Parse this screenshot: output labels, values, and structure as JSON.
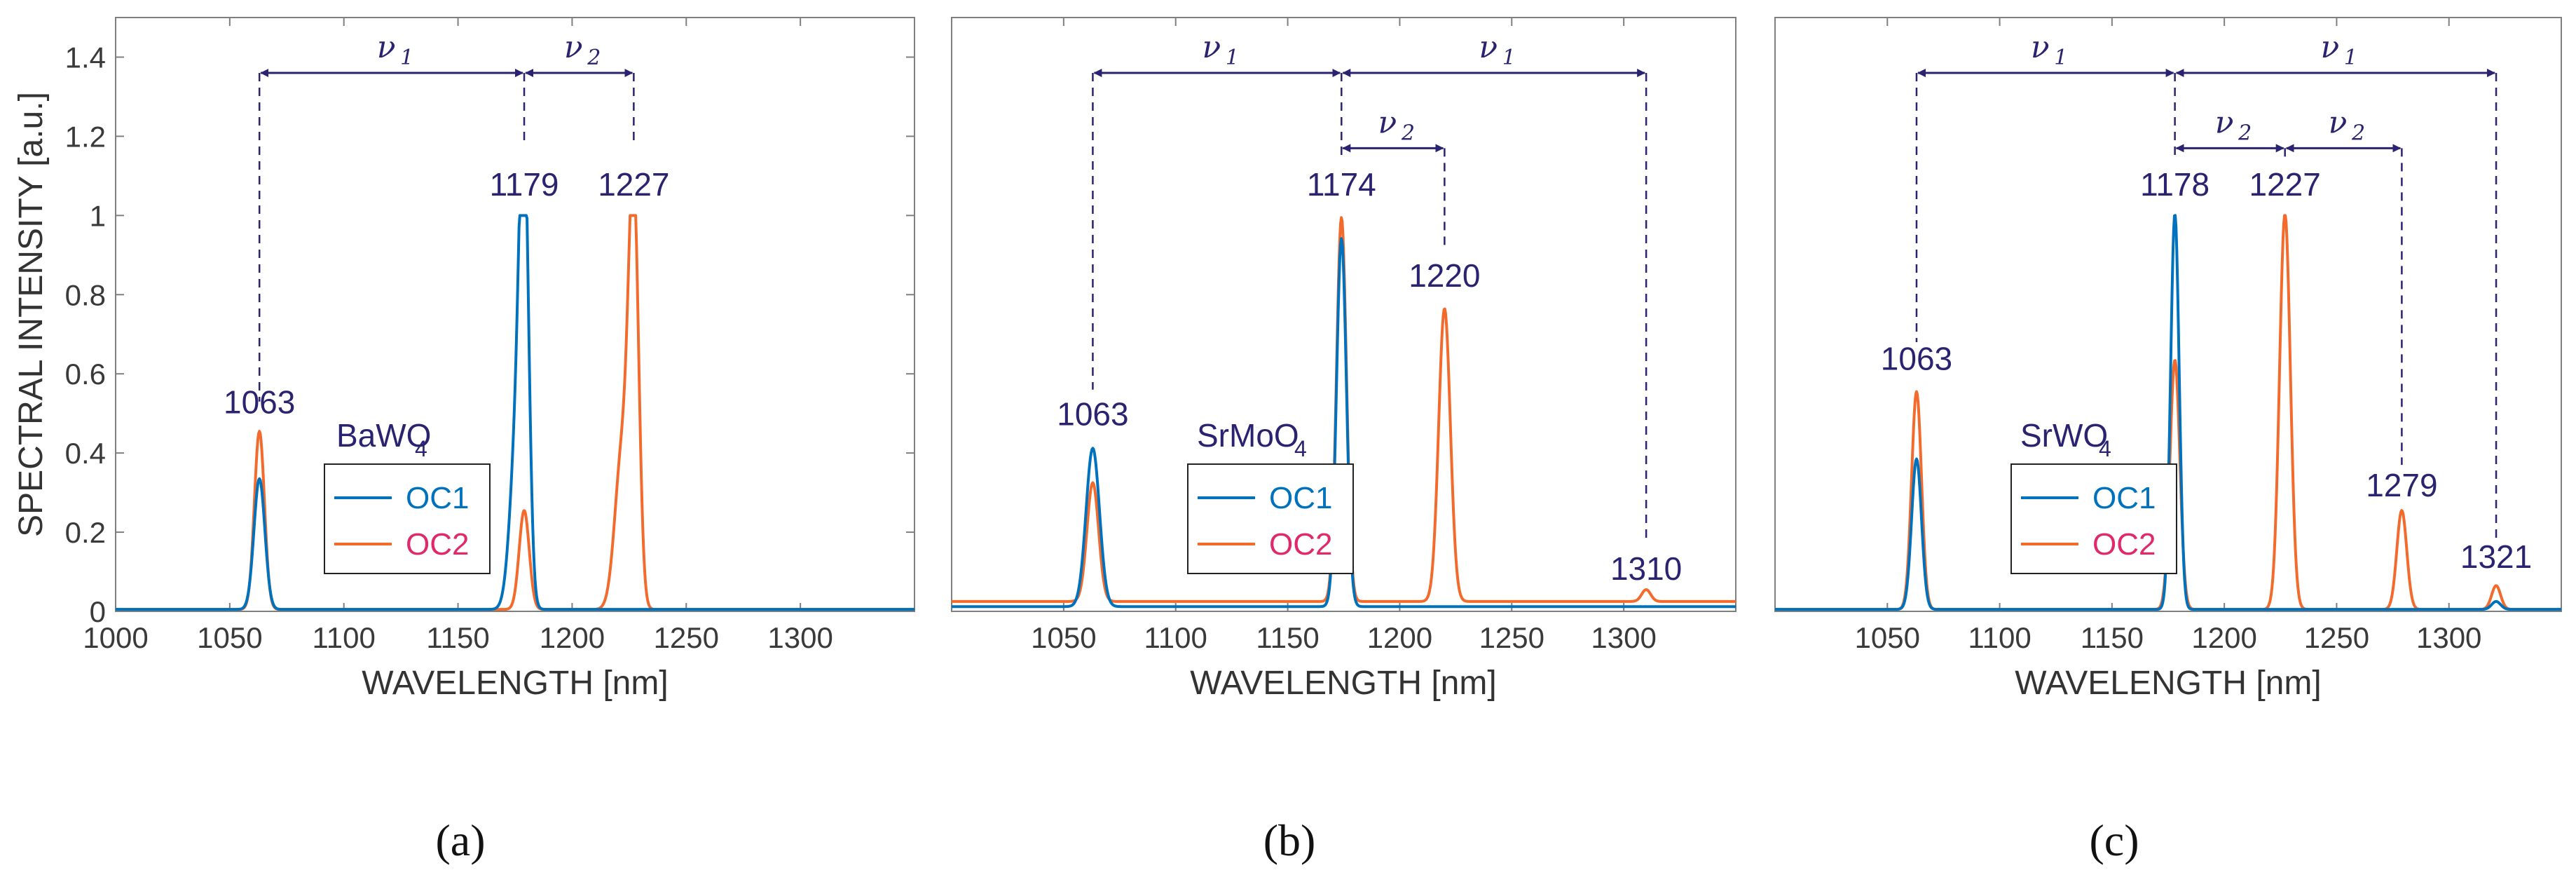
{
  "figure": {
    "y_label": "SPECTRAL INTENSITY [a.u.]",
    "x_label": "WAVELENGTH [nm]",
    "series_names": [
      "OC1",
      "OC2"
    ],
    "colors": {
      "OC1": "#0072bd",
      "OC2": "#f26b2d",
      "annotation": "#2a2470",
      "axis": "#333333",
      "frame": "#7f7f7f",
      "legend_oc2_text": "#e0286a"
    }
  },
  "chart_data": [
    {
      "type": "line",
      "panel": "(a)",
      "sample": {
        "base": "BaWO",
        "sub": "4"
      },
      "title": "",
      "xlabel": "WAVELENGTH [nm]",
      "ylabel": "SPECTRAL INTENSITY [a.u.]",
      "xlim": [
        1000,
        1350
      ],
      "ylim": [
        0,
        1.5
      ],
      "xticks": [
        1000,
        1050,
        1100,
        1150,
        1200,
        1250,
        1300
      ],
      "yticks": [
        0,
        0.2,
        0.4,
        0.6,
        0.8,
        1,
        1.2,
        1.4
      ],
      "yticklabels": [
        "0",
        "0.2",
        "0.4",
        "0.6",
        "0.8",
        "1",
        "1.2",
        "1.4"
      ],
      "series": [
        {
          "name": "OC1",
          "baseline": 0.005,
          "peaks": [
            {
              "center": 1063,
              "height": 0.33,
              "width": 2.4
            },
            {
              "center": 1179,
              "height": 1.0,
              "width": 2.0
            },
            {
              "center": 1176,
              "height": 0.45,
              "width": 3.0
            }
          ]
        },
        {
          "name": "OC2",
          "baseline": 0.005,
          "peaks": [
            {
              "center": 1063,
              "height": 0.45,
              "width": 2.2
            },
            {
              "center": 1179,
              "height": 0.25,
              "width": 2.2
            },
            {
              "center": 1227,
              "height": 1.0,
              "width": 2.2
            },
            {
              "center": 1222,
              "height": 0.4,
              "width": 3.2
            }
          ]
        }
      ],
      "peak_labels": [
        {
          "wavelength": 1063,
          "text": "1063",
          "y": 0.5
        },
        {
          "wavelength": 1179,
          "text": "1179",
          "y": 1.05
        },
        {
          "wavelength": 1227,
          "text": "1227",
          "y": 1.05
        }
      ],
      "shift_arrows": [
        {
          "from": 1063,
          "to": 1179,
          "y": 1.36,
          "label": "ν",
          "sub": "1"
        },
        {
          "from": 1179,
          "to": 1227,
          "y": 1.36,
          "label": "ν",
          "sub": "2"
        }
      ],
      "guide_lines": [
        {
          "wavelength": 1063,
          "y_top": 1.36,
          "y_bottom": 0.53
        },
        {
          "wavelength": 1179,
          "y_top": 1.36,
          "y_bottom": 1.18
        },
        {
          "wavelength": 1227,
          "y_top": 1.36,
          "y_bottom": 1.18
        }
      ]
    },
    {
      "type": "line",
      "panel": "(b)",
      "sample": {
        "base": "SrMoO",
        "sub": "4"
      },
      "title": "",
      "xlabel": "WAVELENGTH [nm]",
      "ylabel": "",
      "xlim": [
        1000,
        1350
      ],
      "ylim": [
        0,
        1.5
      ],
      "xticks": [
        1050,
        1100,
        1150,
        1200,
        1250,
        1300
      ],
      "yticks": [],
      "yticklabels": [],
      "series": [
        {
          "name": "OC1",
          "baseline": 0.012,
          "peaks": [
            {
              "center": 1063,
              "height": 0.4,
              "width": 3.0
            },
            {
              "center": 1174,
              "height": 0.93,
              "width": 2.2
            }
          ]
        },
        {
          "name": "OC2",
          "baseline": 0.025,
          "peaks": [
            {
              "center": 1063,
              "height": 0.3,
              "width": 2.6
            },
            {
              "center": 1174,
              "height": 0.97,
              "width": 2.2
            },
            {
              "center": 1220,
              "height": 0.74,
              "width": 2.6
            },
            {
              "center": 1310,
              "height": 0.03,
              "width": 2.0
            }
          ]
        }
      ],
      "peak_labels": [
        {
          "wavelength": 1063,
          "text": "1063",
          "y": 0.47
        },
        {
          "wavelength": 1174,
          "text": "1174",
          "y": 1.05
        },
        {
          "wavelength": 1220,
          "text": "1220",
          "y": 0.82
        },
        {
          "wavelength": 1310,
          "text": "1310",
          "y": 0.08
        }
      ],
      "shift_arrows": [
        {
          "from": 1063,
          "to": 1174,
          "y": 1.36,
          "label": "ν",
          "sub": "1"
        },
        {
          "from": 1174,
          "to": 1310,
          "y": 1.36,
          "label": "ν",
          "sub": "1"
        },
        {
          "from": 1174,
          "to": 1220,
          "y": 1.17,
          "label": "ν",
          "sub": "2"
        }
      ],
      "guide_lines": [
        {
          "wavelength": 1063,
          "y_top": 1.36,
          "y_bottom": 0.56
        },
        {
          "wavelength": 1174,
          "y_top": 1.36,
          "y_bottom": 1.14
        },
        {
          "wavelength": 1220,
          "y_top": 1.17,
          "y_bottom": 0.92
        },
        {
          "wavelength": 1310,
          "y_top": 1.36,
          "y_bottom": 0.18
        }
      ]
    },
    {
      "type": "line",
      "panel": "(c)",
      "sample": {
        "base": "SrWO",
        "sub": "4"
      },
      "title": "",
      "xlabel": "WAVELENGTH [nm]",
      "ylabel": "",
      "xlim": [
        1000,
        1350
      ],
      "ylim": [
        0,
        1.5
      ],
      "xticks": [
        1050,
        1100,
        1150,
        1200,
        1250,
        1300
      ],
      "yticks": [],
      "yticklabels": [],
      "series": [
        {
          "name": "OC1",
          "baseline": 0.005,
          "peaks": [
            {
              "center": 1063,
              "height": 0.38,
              "width": 2.2
            },
            {
              "center": 1178,
              "height": 1.0,
              "width": 1.9
            },
            {
              "center": 1321,
              "height": 0.02,
              "width": 2.0
            }
          ]
        },
        {
          "name": "OC2",
          "baseline": 0.005,
          "peaks": [
            {
              "center": 1063,
              "height": 0.55,
              "width": 2.2
            },
            {
              "center": 1178,
              "height": 0.63,
              "width": 2.2
            },
            {
              "center": 1227,
              "height": 1.0,
              "width": 2.4
            },
            {
              "center": 1279,
              "height": 0.25,
              "width": 2.2
            },
            {
              "center": 1321,
              "height": 0.06,
              "width": 2.0
            }
          ]
        }
      ],
      "peak_labels": [
        {
          "wavelength": 1063,
          "text": "1063",
          "y": 0.61
        },
        {
          "wavelength": 1178,
          "text": "1178",
          "y": 1.05
        },
        {
          "wavelength": 1227,
          "text": "1227",
          "y": 1.05
        },
        {
          "wavelength": 1279,
          "text": "1279",
          "y": 0.29
        },
        {
          "wavelength": 1321,
          "text": "1321",
          "y": 0.11
        }
      ],
      "shift_arrows": [
        {
          "from": 1063,
          "to": 1178,
          "y": 1.36,
          "label": "ν",
          "sub": "1"
        },
        {
          "from": 1178,
          "to": 1321,
          "y": 1.36,
          "label": "ν",
          "sub": "1"
        },
        {
          "from": 1178,
          "to": 1227,
          "y": 1.17,
          "label": "ν",
          "sub": "2"
        },
        {
          "from": 1227,
          "to": 1279,
          "y": 1.17,
          "label": "ν",
          "sub": "2"
        }
      ],
      "guide_lines": [
        {
          "wavelength": 1063,
          "y_top": 1.36,
          "y_bottom": 0.68
        },
        {
          "wavelength": 1178,
          "y_top": 1.36,
          "y_bottom": 1.14
        },
        {
          "wavelength": 1227,
          "y_top": 1.17,
          "y_bottom": 1.14
        },
        {
          "wavelength": 1279,
          "y_top": 1.17,
          "y_bottom": 0.37
        },
        {
          "wavelength": 1321,
          "y_top": 1.36,
          "y_bottom": 0.18
        }
      ]
    }
  ]
}
